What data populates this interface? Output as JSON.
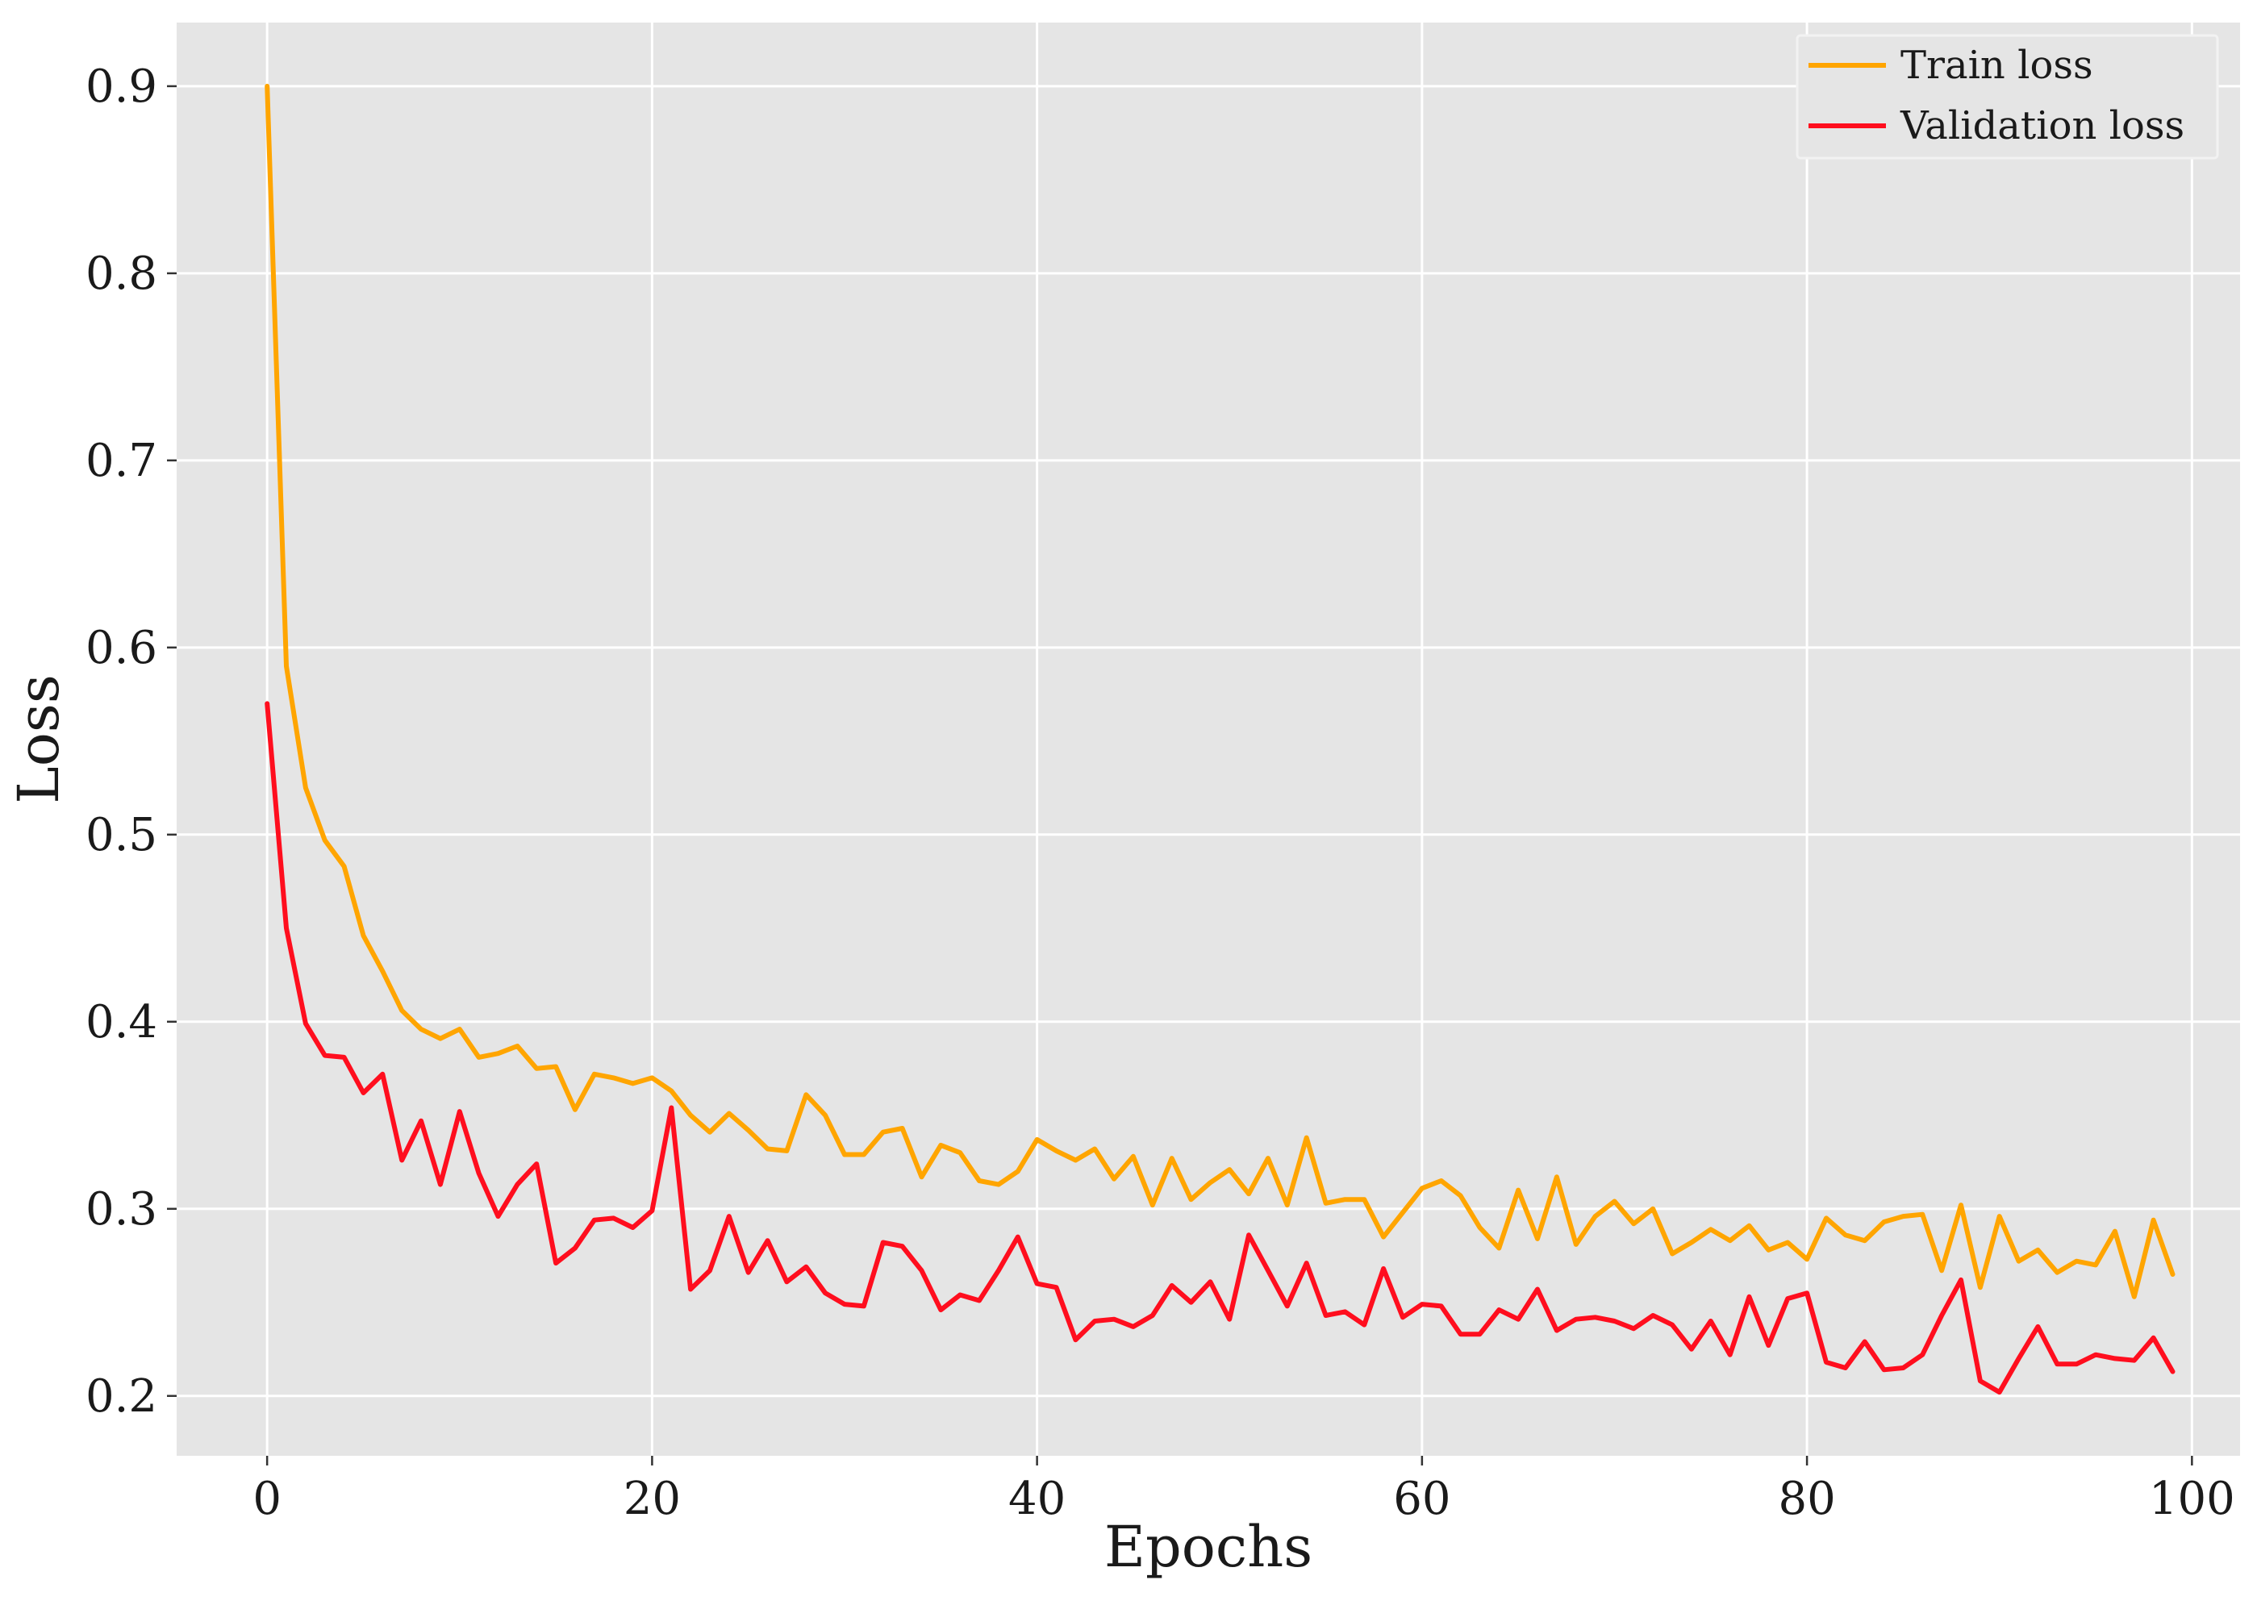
{
  "chart_data": {
    "type": "line",
    "xlabel": "Epochs",
    "ylabel": "Loss",
    "xlim": [
      -4.7,
      102.5
    ],
    "ylim": [
      0.168,
      0.934
    ],
    "xticks": [
      0,
      20,
      40,
      60,
      80,
      100
    ],
    "yticks": [
      0.2,
      0.3,
      0.4,
      0.5,
      0.6,
      0.7,
      0.8,
      0.9
    ],
    "xtick_labels": [
      "0",
      "20",
      "40",
      "60",
      "80",
      "100"
    ],
    "ytick_labels": [
      "0.2",
      "0.3",
      "0.4",
      "0.5",
      "0.6",
      "0.7",
      "0.8",
      "0.9"
    ],
    "grid": true,
    "legend_position": "top-right",
    "background": "#e5e5e5",
    "series": [
      {
        "name": "Train loss",
        "color": "#ffa500",
        "values": [
          0.9,
          0.59,
          0.525,
          0.497,
          0.483,
          0.446,
          0.427,
          0.406,
          0.396,
          0.391,
          0.396,
          0.381,
          0.383,
          0.387,
          0.375,
          0.376,
          0.353,
          0.372,
          0.37,
          0.367,
          0.37,
          0.363,
          0.35,
          0.341,
          0.351,
          0.342,
          0.332,
          0.331,
          0.361,
          0.35,
          0.329,
          0.329,
          0.341,
          0.343,
          0.317,
          0.334,
          0.33,
          0.315,
          0.313,
          0.32,
          0.337,
          0.331,
          0.326,
          0.332,
          0.316,
          0.328,
          0.302,
          0.327,
          0.305,
          0.314,
          0.321,
          0.308,
          0.327,
          0.302,
          0.338,
          0.303,
          0.305,
          0.305,
          0.285,
          0.298,
          0.311,
          0.315,
          0.307,
          0.29,
          0.279,
          0.31,
          0.284,
          0.317,
          0.281,
          0.296,
          0.304,
          0.292,
          0.3,
          0.276,
          0.282,
          0.289,
          0.283,
          0.291,
          0.278,
          0.282,
          0.273,
          0.295,
          0.286,
          0.283,
          0.293,
          0.296,
          0.297,
          0.267,
          0.302,
          0.258,
          0.296,
          0.272,
          0.278,
          0.266,
          0.272,
          0.27,
          0.288,
          0.253,
          0.294,
          0.265
        ]
      },
      {
        "name": "Validation loss",
        "color": "#ff0e1e",
        "values": [
          0.57,
          0.45,
          0.399,
          0.382,
          0.381,
          0.362,
          0.372,
          0.326,
          0.347,
          0.313,
          0.352,
          0.319,
          0.296,
          0.313,
          0.324,
          0.271,
          0.279,
          0.294,
          0.295,
          0.29,
          0.299,
          0.354,
          0.257,
          0.267,
          0.296,
          0.266,
          0.283,
          0.261,
          0.269,
          0.255,
          0.249,
          0.248,
          0.282,
          0.28,
          0.267,
          0.246,
          0.254,
          0.251,
          0.267,
          0.285,
          0.26,
          0.258,
          0.23,
          0.24,
          0.241,
          0.237,
          0.243,
          0.259,
          0.25,
          0.261,
          0.241,
          0.286,
          0.267,
          0.248,
          0.271,
          0.243,
          0.245,
          0.238,
          0.268,
          0.242,
          0.249,
          0.248,
          0.233,
          0.233,
          0.246,
          0.241,
          0.257,
          0.235,
          0.241,
          0.242,
          0.24,
          0.236,
          0.243,
          0.238,
          0.225,
          0.24,
          0.222,
          0.253,
          0.227,
          0.252,
          0.255,
          0.218,
          0.215,
          0.229,
          0.214,
          0.215,
          0.222,
          0.243,
          0.262,
          0.208,
          0.202,
          0.22,
          0.237,
          0.217,
          0.217,
          0.222,
          0.22,
          0.219,
          0.231,
          0.213
        ]
      }
    ]
  }
}
